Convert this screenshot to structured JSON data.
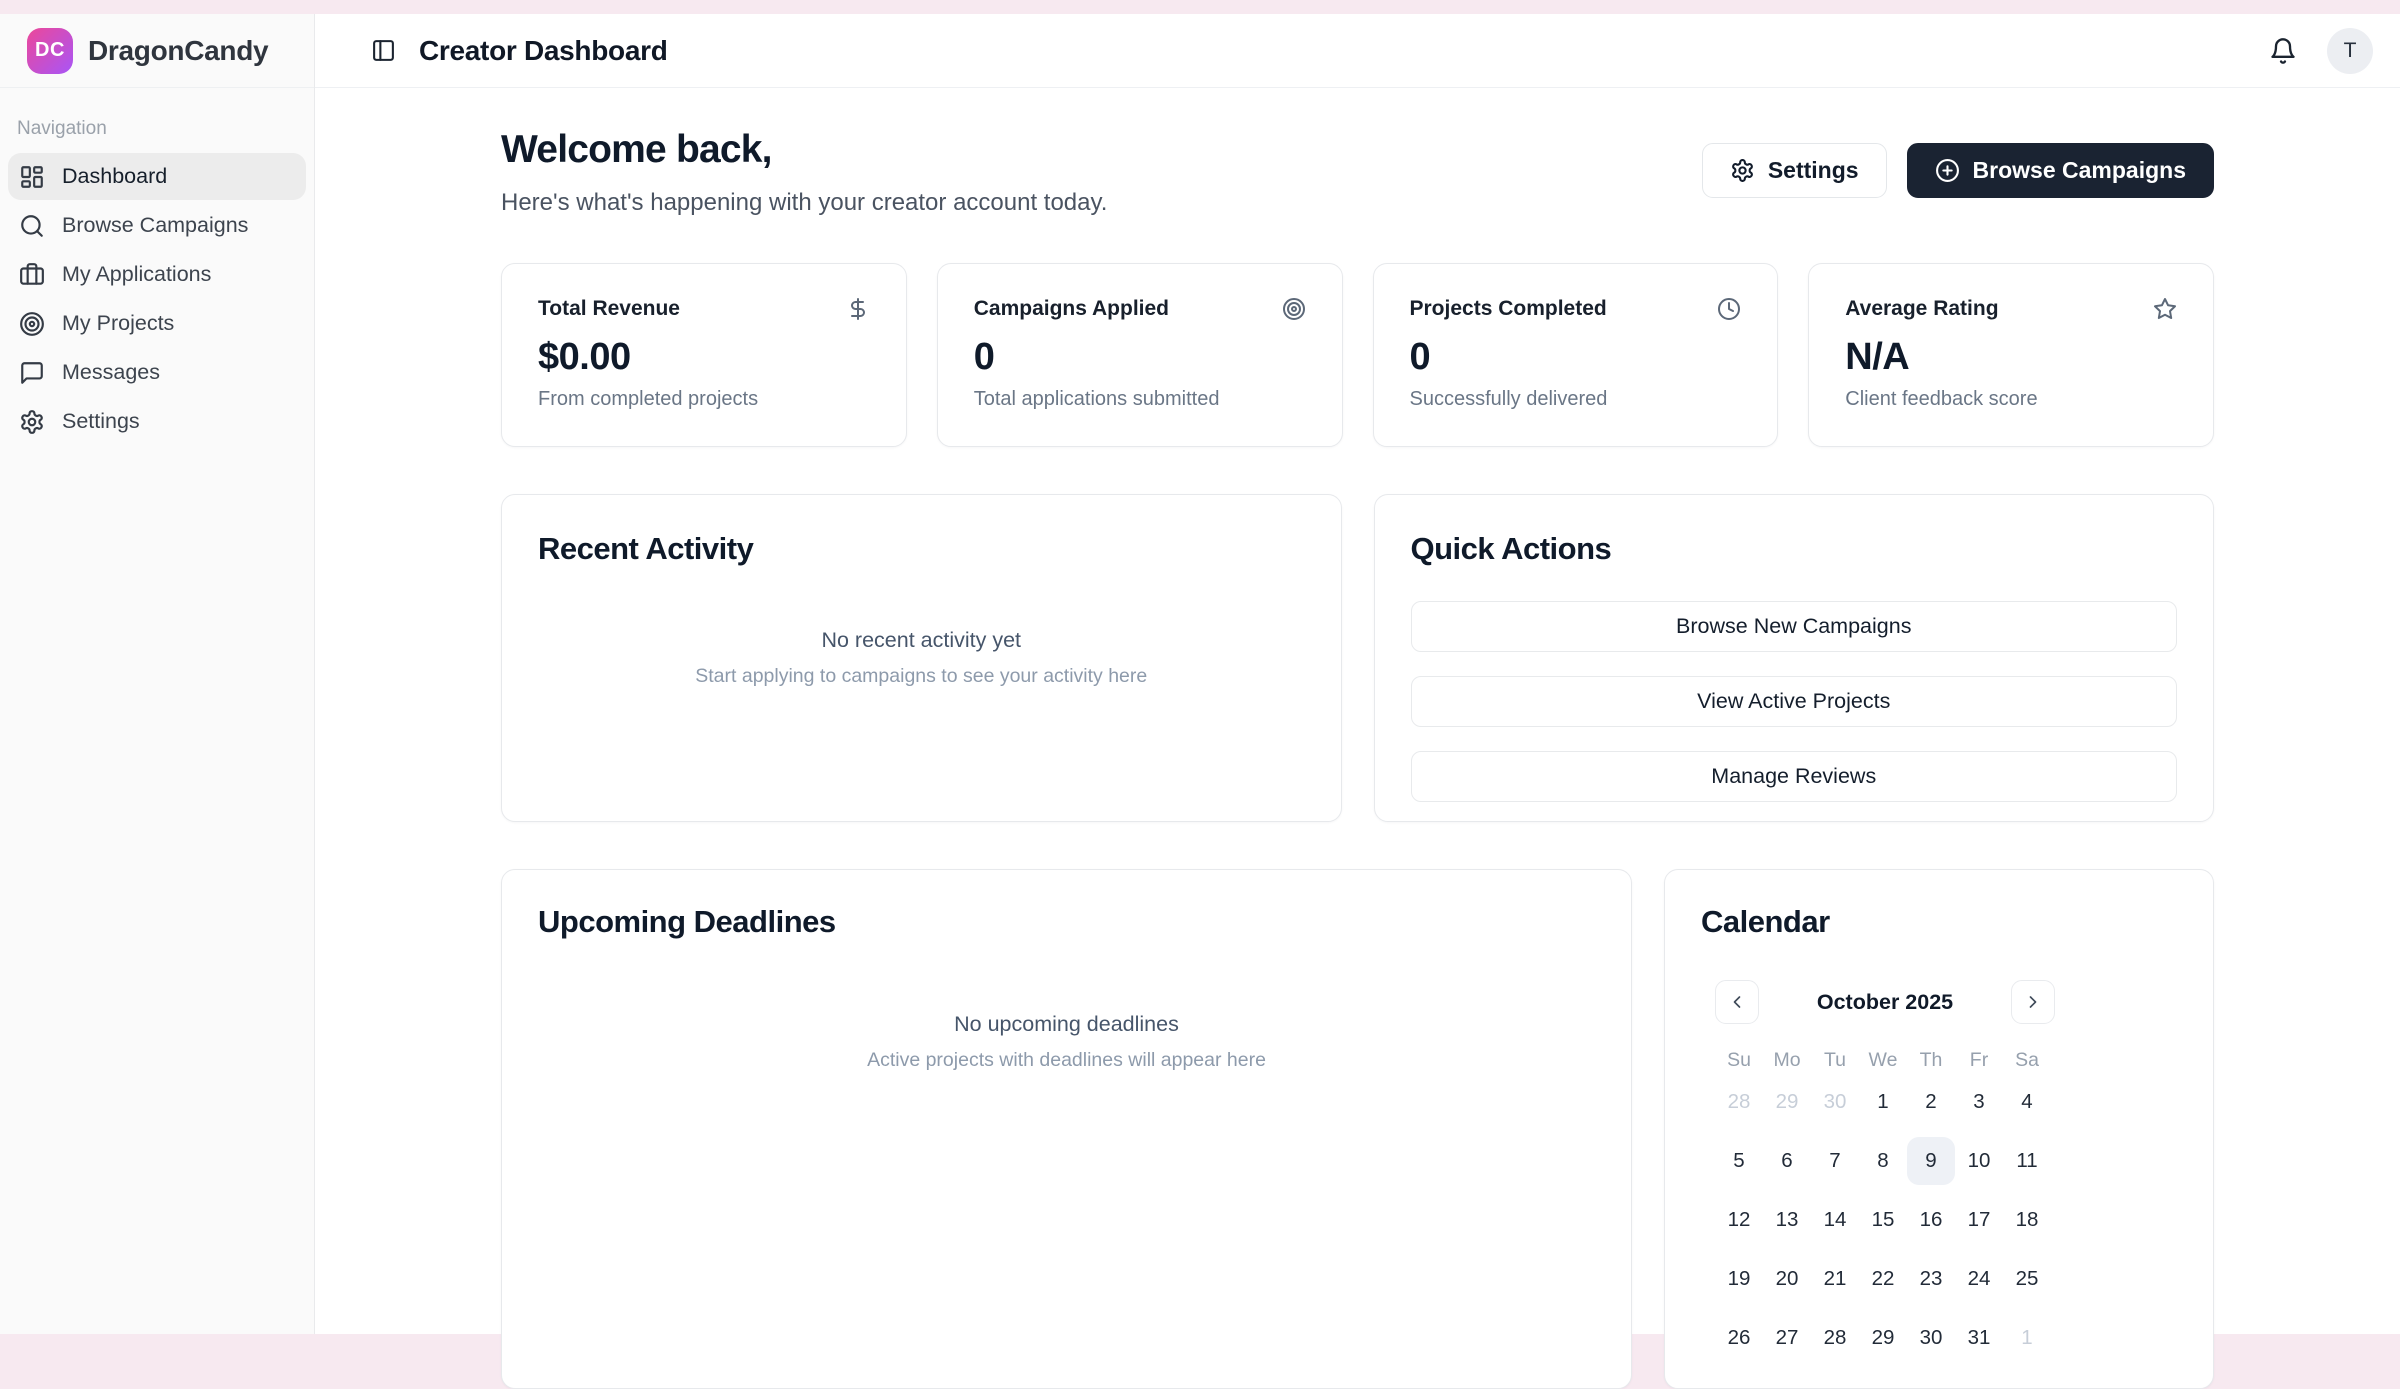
{
  "app": {
    "name": "DragonCandy",
    "logo_initials": "DC"
  },
  "colors": {
    "frame_background": "#f7e9f0",
    "logo_gradient_start": "#ec4899",
    "logo_gradient_end": "#a855f7",
    "primary_button": "#1a2332",
    "today_highlight": "#eef1f6"
  },
  "sidebar": {
    "section_label": "Navigation",
    "items": [
      {
        "label": "Dashboard",
        "icon": "dashboard-icon",
        "active": true
      },
      {
        "label": "Browse Campaigns",
        "icon": "search-icon",
        "active": false
      },
      {
        "label": "My Applications",
        "icon": "briefcase-icon",
        "active": false
      },
      {
        "label": "My Projects",
        "icon": "target-icon",
        "active": false
      },
      {
        "label": "Messages",
        "icon": "message-icon",
        "active": false
      },
      {
        "label": "Settings",
        "icon": "gear-icon",
        "active": false
      }
    ]
  },
  "header": {
    "title": "Creator Dashboard",
    "avatar_initial": "T"
  },
  "welcome": {
    "heading": "Welcome back,",
    "subheading": "Here's what's happening with your creator account today.",
    "settings_button_label": "Settings",
    "browse_button_label": "Browse Campaigns"
  },
  "stats": [
    {
      "title": "Total Revenue",
      "value": "$0.00",
      "subtitle": "From completed projects",
      "icon": "dollar-icon"
    },
    {
      "title": "Campaigns Applied",
      "value": "0",
      "subtitle": "Total applications submitted",
      "icon": "target-icon"
    },
    {
      "title": "Projects Completed",
      "value": "0",
      "subtitle": "Successfully delivered",
      "icon": "clock-icon"
    },
    {
      "title": "Average Rating",
      "value": "N/A",
      "subtitle": "Client feedback score",
      "icon": "star-icon"
    }
  ],
  "recent_activity": {
    "title": "Recent Activity",
    "empty_title": "No recent activity yet",
    "empty_subtitle": "Start applying to campaigns to see your activity here"
  },
  "quick_actions": {
    "title": "Quick Actions",
    "actions": [
      "Browse New Campaigns",
      "View Active Projects",
      "Manage Reviews"
    ]
  },
  "upcoming_deadlines": {
    "title": "Upcoming Deadlines",
    "empty_title": "No upcoming deadlines",
    "empty_subtitle": "Active projects with deadlines will appear here"
  },
  "calendar": {
    "title": "Calendar",
    "month_label": "October 2025",
    "weekdays": [
      "Su",
      "Mo",
      "Tu",
      "We",
      "Th",
      "Fr",
      "Sa"
    ],
    "weeks": [
      [
        {
          "day": "28",
          "muted": true
        },
        {
          "day": "29",
          "muted": true
        },
        {
          "day": "30",
          "muted": true
        },
        {
          "day": "1"
        },
        {
          "day": "2"
        },
        {
          "day": "3"
        },
        {
          "day": "4"
        }
      ],
      [
        {
          "day": "5"
        },
        {
          "day": "6"
        },
        {
          "day": "7"
        },
        {
          "day": "8"
        },
        {
          "day": "9",
          "today": true
        },
        {
          "day": "10"
        },
        {
          "day": "11"
        }
      ],
      [
        {
          "day": "12"
        },
        {
          "day": "13"
        },
        {
          "day": "14"
        },
        {
          "day": "15"
        },
        {
          "day": "16"
        },
        {
          "day": "17"
        },
        {
          "day": "18"
        }
      ],
      [
        {
          "day": "19"
        },
        {
          "day": "20"
        },
        {
          "day": "21"
        },
        {
          "day": "22"
        },
        {
          "day": "23"
        },
        {
          "day": "24"
        },
        {
          "day": "25"
        }
      ],
      [
        {
          "day": "26"
        },
        {
          "day": "27"
        },
        {
          "day": "28"
        },
        {
          "day": "29"
        },
        {
          "day": "30"
        },
        {
          "day": "31"
        },
        {
          "day": "1",
          "muted": true
        }
      ]
    ]
  }
}
